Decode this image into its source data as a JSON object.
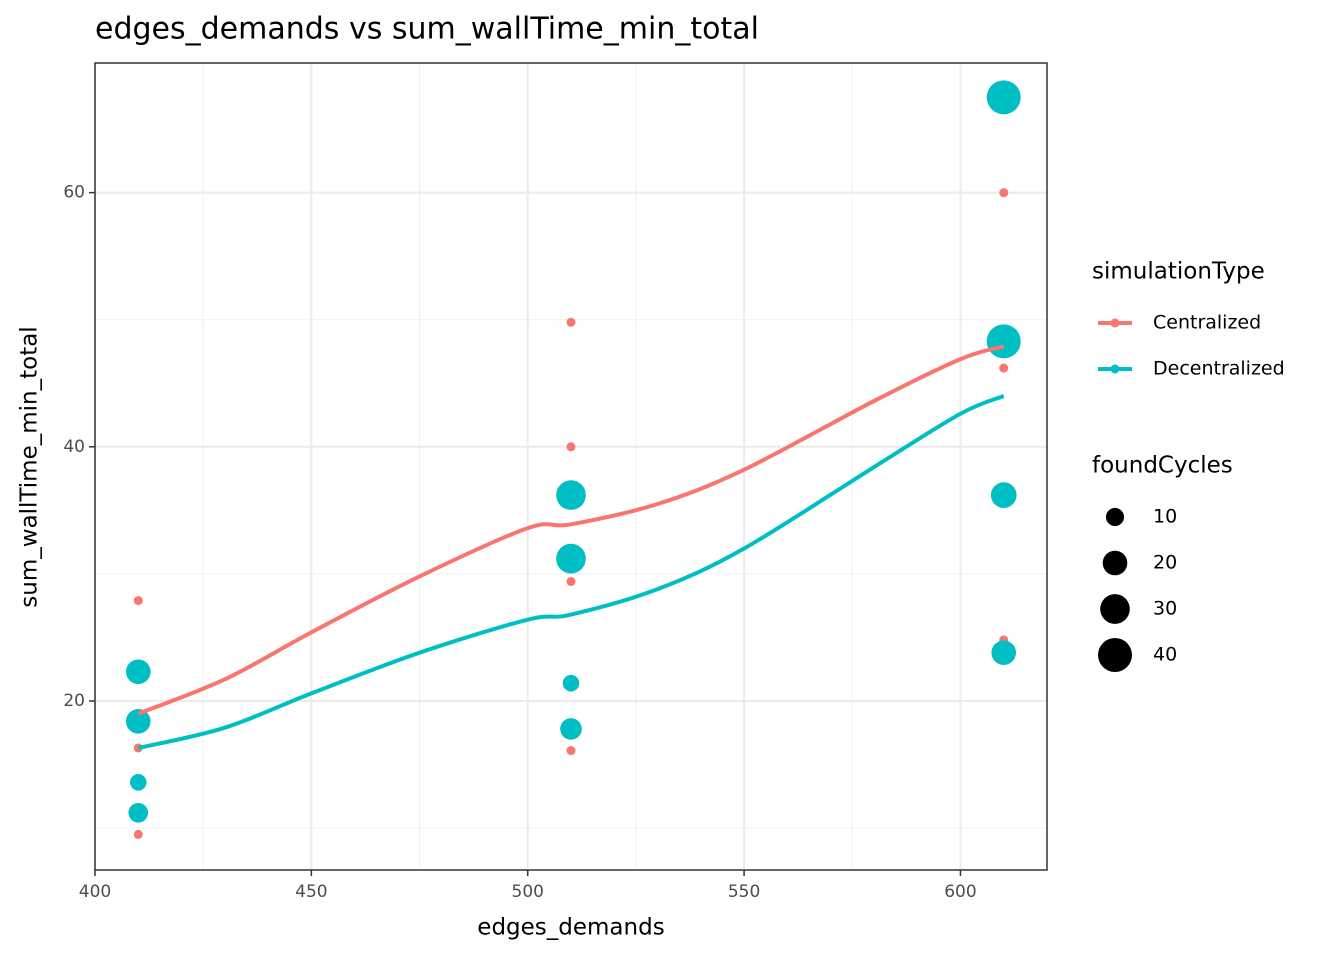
{
  "chart_data": {
    "type": "scatter",
    "title": "edges_demands  vs  sum_wallTime_min_total",
    "x_label": "edges_demands",
    "y_label": "sum_wallTime_min_total",
    "xlim": [
      400,
      620
    ],
    "ylim": [
      6.7,
      70.2
    ],
    "xticks": [
      400,
      450,
      500,
      550,
      600
    ],
    "yticks": [
      20,
      40,
      60
    ],
    "x_minor_grid": [
      425,
      475,
      525,
      575
    ],
    "y_minor_grid": [
      10,
      30,
      50
    ],
    "grid": true,
    "legend_title": "simulationType",
    "size_legend_title": "foundCycles",
    "size_legend": [
      10,
      20,
      30,
      40
    ],
    "series": [
      {
        "name": "Centralized",
        "color": "#F8766D",
        "x": [
          410,
          410,
          410,
          410,
          510,
          510,
          510,
          510,
          610,
          610,
          610
        ],
        "values": [
          27.9,
          22.0,
          16.3,
          9.5,
          49.8,
          40.0,
          29.4,
          16.1,
          60.0,
          46.2,
          24.8
        ],
        "sizes": [
          1,
          1,
          1,
          1,
          1,
          1,
          1,
          1,
          1,
          1,
          1
        ],
        "smooth_x": [
          410,
          430,
          450,
          475,
          500,
          510,
          530,
          550,
          580,
          600,
          610
        ],
        "smooth_values": [
          19.0,
          21.7,
          25.4,
          29.8,
          33.6,
          33.9,
          35.5,
          38.2,
          43.6,
          46.9,
          47.9
        ]
      },
      {
        "name": "Decentralized",
        "color": "#00BFC4",
        "x": [
          410,
          410,
          410,
          410,
          510,
          510,
          510,
          510,
          610,
          610,
          610,
          610
        ],
        "values": [
          22.3,
          18.4,
          13.6,
          11.2,
          36.2,
          31.2,
          21.4,
          17.8,
          67.5,
          48.3,
          36.2,
          23.8
        ],
        "sizes": [
          20,
          20,
          8,
          12,
          30,
          30,
          8,
          15,
          40,
          40,
          22,
          20
        ],
        "smooth_x": [
          410,
          430,
          450,
          475,
          500,
          510,
          530,
          550,
          580,
          600,
          610
        ],
        "smooth_values": [
          16.3,
          17.9,
          20.6,
          23.8,
          26.4,
          26.8,
          28.8,
          32.0,
          38.4,
          42.6,
          44.0
        ]
      }
    ]
  }
}
